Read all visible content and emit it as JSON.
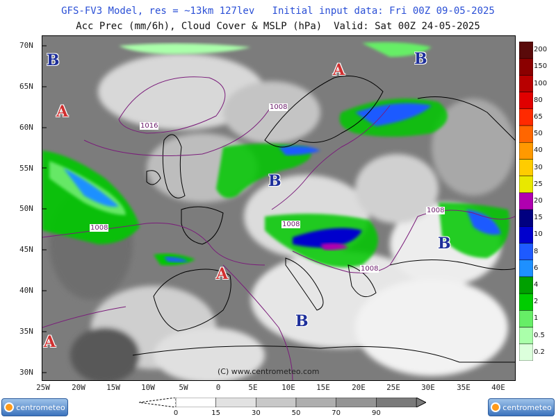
{
  "header": {
    "line1": "GFS-FV3 Model, res = ~13km 127lev   Initial input data: Fri 00Z 09-05-2025",
    "line2": "Acc Prec (mm/6h), Cloud Cover & MSLP (hPa)  Valid: Sat 00Z 24-05-2025"
  },
  "axes": {
    "lat_labels": [
      "70N",
      "65N",
      "60N",
      "55N",
      "50N",
      "45N",
      "40N",
      "35N",
      "30N"
    ],
    "lon_labels": [
      "25W",
      "20W",
      "15W",
      "10W",
      "5W",
      "0",
      "5E",
      "10E",
      "15E",
      "20E",
      "25E",
      "30E",
      "35E",
      "40E"
    ]
  },
  "precip_legend": {
    "labels": [
      "200",
      "150",
      "100",
      "80",
      "65",
      "50",
      "40",
      "30",
      "25",
      "20",
      "15",
      "10",
      "8",
      "6",
      "4",
      "2",
      "1",
      "0.5",
      "0.2"
    ],
    "colors": [
      "#5a0a0a",
      "#8b0000",
      "#b80000",
      "#e00000",
      "#ff2a00",
      "#ff6600",
      "#ff9900",
      "#ffcc00",
      "#e8e800",
      "#b000b0",
      "#000080",
      "#0000cd",
      "#1e5aff",
      "#1e90ff",
      "#00a000",
      "#00cc00",
      "#66ee66",
      "#aaffaa",
      "#dcffdc"
    ]
  },
  "cloud_legend": {
    "labels": [
      "0",
      "15",
      "30",
      "50",
      "70",
      "90"
    ],
    "colors": [
      "#ffffff",
      "#e2e2e2",
      "#c8c8c8",
      "#aeaeae",
      "#949494",
      "#7a7a7a"
    ]
  },
  "pressure_centers": [
    {
      "letter": "B",
      "kind": "low"
    },
    {
      "letter": "A",
      "kind": "high"
    },
    {
      "letter": "B",
      "kind": "low"
    },
    {
      "letter": "A",
      "kind": "high"
    },
    {
      "letter": "B",
      "kind": "low"
    },
    {
      "letter": "A",
      "kind": "high"
    },
    {
      "letter": "B",
      "kind": "low"
    },
    {
      "letter": "B",
      "kind": "low"
    },
    {
      "letter": "A",
      "kind": "high"
    }
  ],
  "isobar_labels": [
    "1008",
    "1016",
    "1008",
    "1008",
    "1008",
    "1008"
  ],
  "copyright": "(C) www.centrometeo.com",
  "logo_text": "centrometeo",
  "colors": {
    "low": "#1e2f9a",
    "high": "#d03030",
    "isobar": "#7a1c7a",
    "title_blue": "#2a4fd6"
  }
}
